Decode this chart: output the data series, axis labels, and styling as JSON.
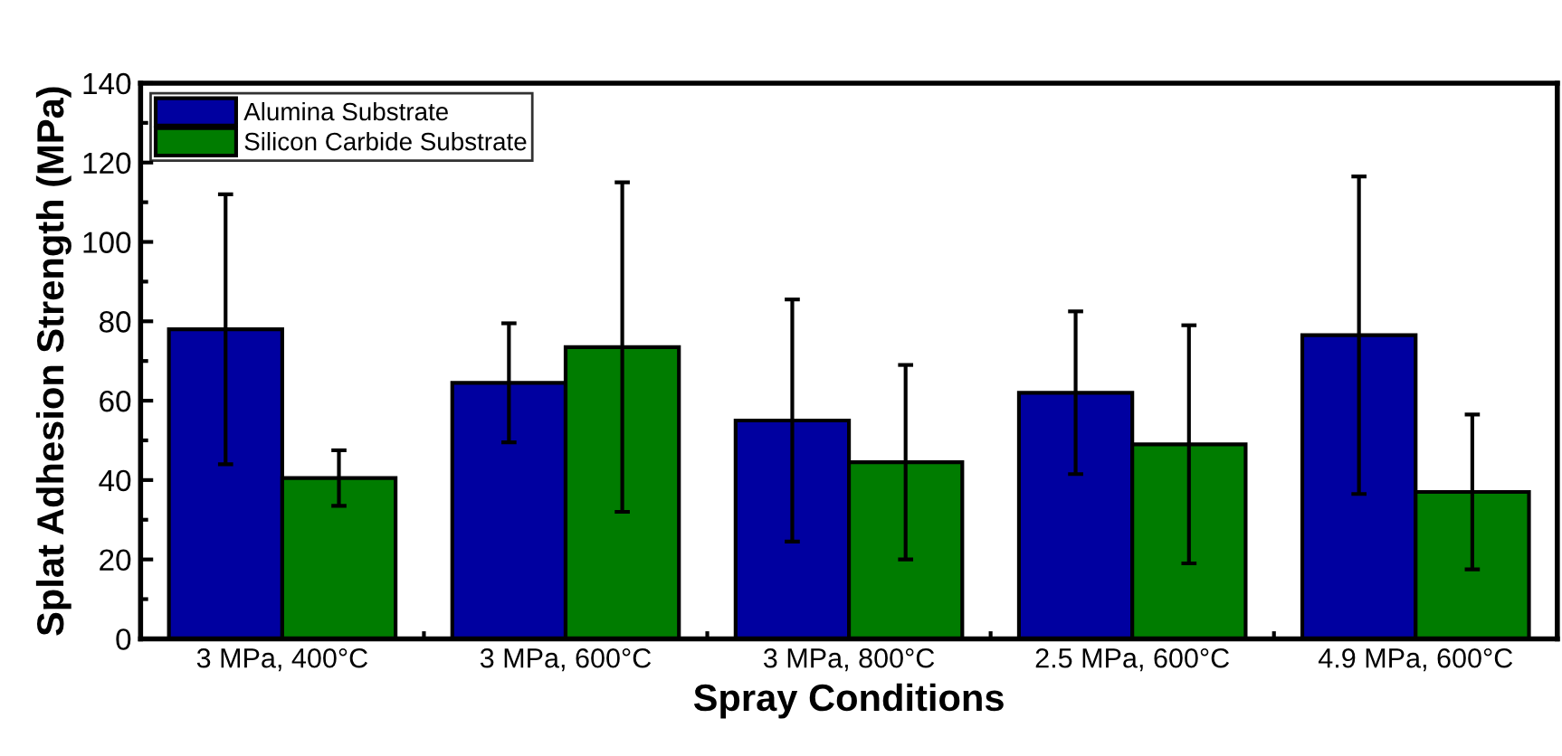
{
  "chart_data": {
    "type": "bar",
    "xlabel": "Spray Conditions",
    "ylabel": "Splat Adhesion Strength (MPa)",
    "categories": [
      "3 MPa, 400°C",
      "3 MPa, 600°C",
      "3 MPa, 800°C",
      "2.5 MPa, 600°C",
      "4.9 MPa, 600°C"
    ],
    "series": [
      {
        "name": "Alumina Substrate",
        "color": "#0000a0",
        "values": [
          78,
          64.5,
          55,
          62,
          76.5
        ],
        "errors": [
          34,
          15,
          30.5,
          20.5,
          40
        ]
      },
      {
        "name": "Silicon Carbide Substrate",
        "color": "#007c00",
        "values": [
          40.5,
          73.5,
          44.5,
          49,
          37
        ],
        "errors": [
          7,
          41.5,
          24.5,
          30,
          19.5
        ]
      }
    ],
    "ylim": [
      0,
      140
    ],
    "yticks": [
      0,
      20,
      40,
      60,
      80,
      100,
      120,
      140
    ],
    "grid": false,
    "legend": "top left"
  }
}
